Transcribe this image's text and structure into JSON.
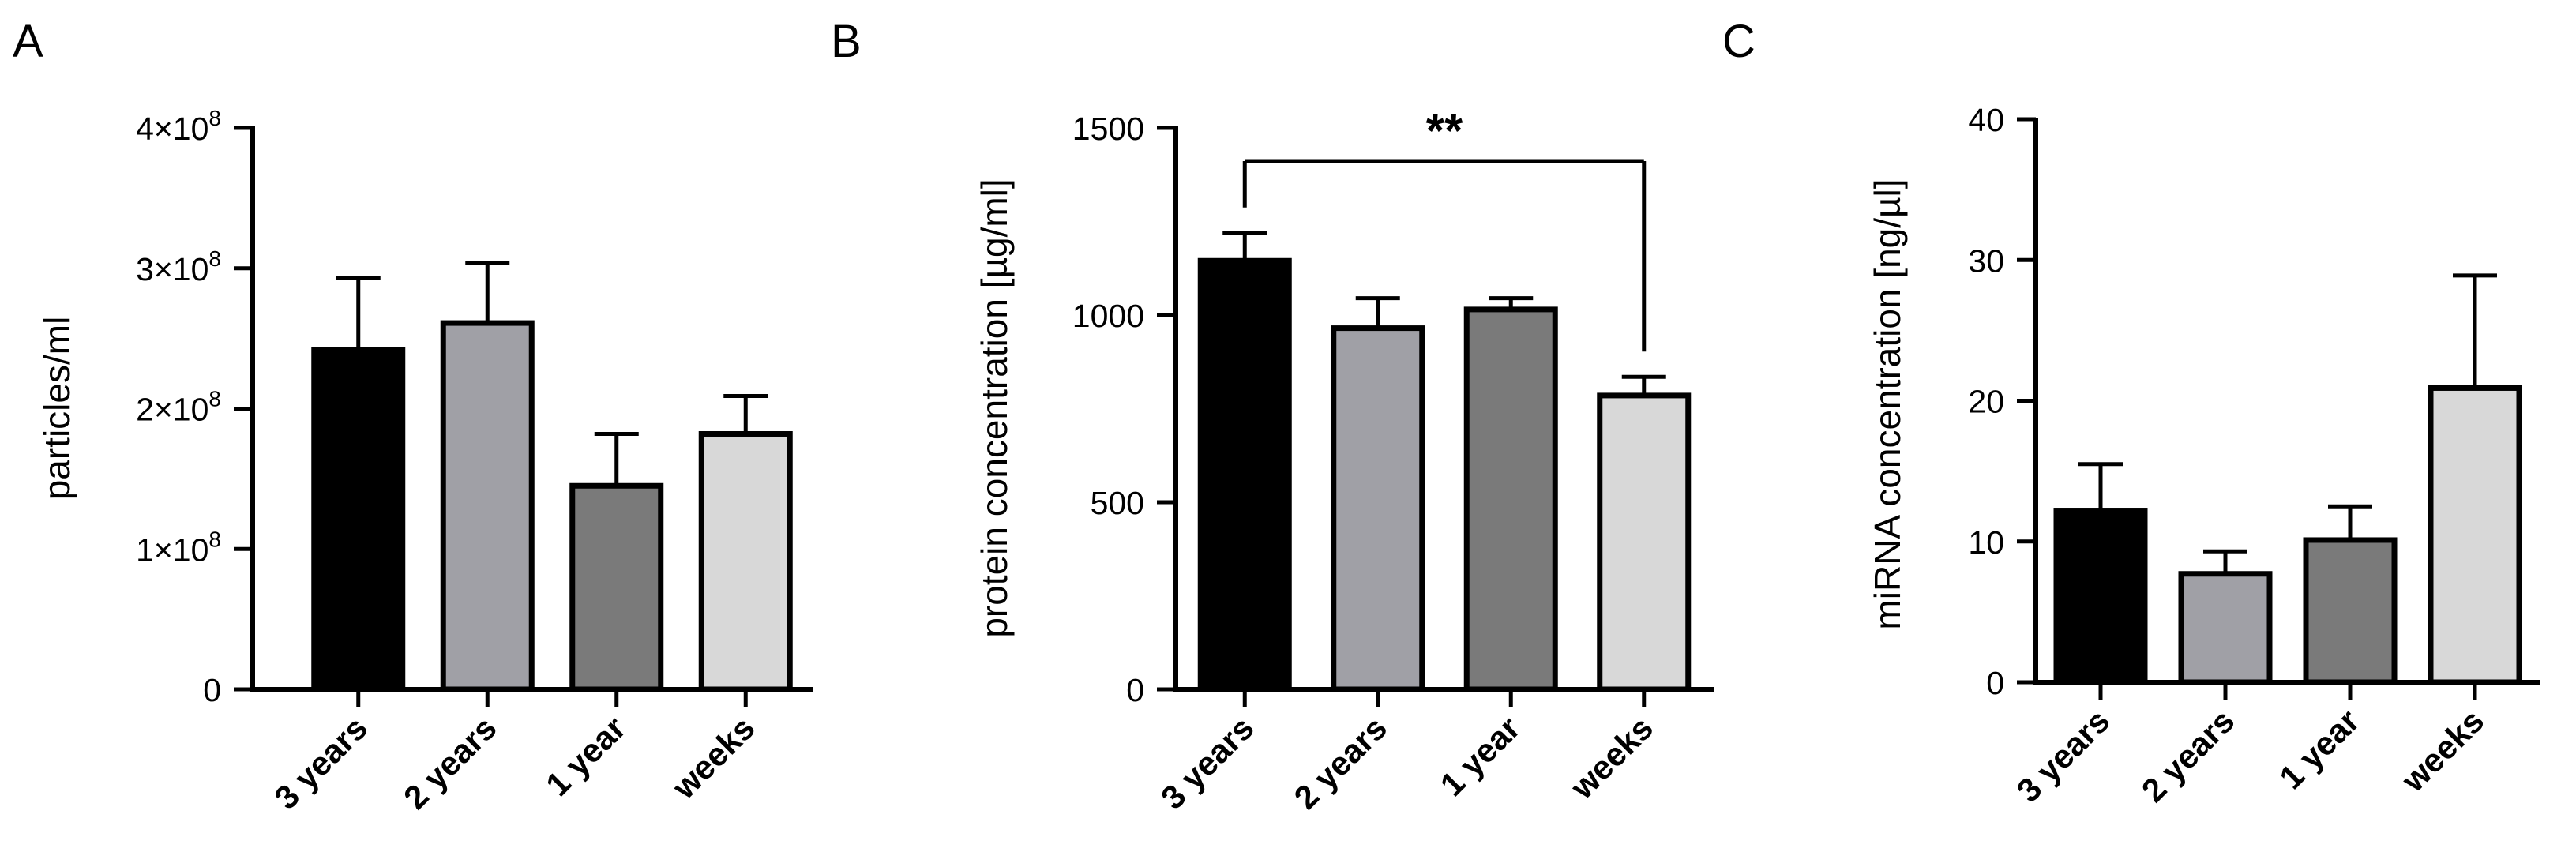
{
  "chart_data": [
    {
      "type": "bar",
      "panel_label": "A",
      "ylabel": "particles/ml",
      "categories": [
        "3 years",
        "2 years",
        "1 year",
        "weeks"
      ],
      "values": [
        242000000,
        261000000,
        145000000,
        182000000
      ],
      "errors": [
        51000000,
        43000000,
        37000000,
        27000000
      ],
      "ylim": [
        0,
        400000000
      ],
      "yticks": [
        0,
        100000000,
        200000000,
        300000000,
        400000000
      ],
      "ytick_labels": [
        "0",
        "1×10",
        "2×10",
        "3×10",
        "4×10"
      ],
      "ytick_exponents": [
        "",
        "8",
        "8",
        "8",
        "8"
      ],
      "colors": [
        "#000000",
        "#a0a0a6",
        "#7a7a7a",
        "#d8d8d8"
      ],
      "grid": false
    },
    {
      "type": "bar",
      "panel_label": "B",
      "ylabel": "protein concentration [µg/ml]",
      "categories": [
        "3 years",
        "2 years",
        "1 year",
        "weeks"
      ],
      "values": [
        1145,
        965,
        1015,
        785
      ],
      "errors": [
        75,
        80,
        30,
        50
      ],
      "ylim": [
        0,
        1500
      ],
      "yticks": [
        0,
        500,
        1000,
        1500
      ],
      "ytick_labels": [
        "0",
        "500",
        "1000",
        "1500"
      ],
      "significance": {
        "label": "**",
        "from": "3 years",
        "to": "weeks"
      },
      "colors": [
        "#000000",
        "#a0a0a6",
        "#7a7a7a",
        "#d8d8d8"
      ],
      "grid": false
    },
    {
      "type": "bar",
      "panel_label": "C",
      "ylabel": "miRNA concentration [ng/µl]",
      "categories": [
        "3 years",
        "2 years",
        "1 year",
        "weeks"
      ],
      "values": [
        12.2,
        7.7,
        10.1,
        20.9
      ],
      "errors": [
        3.3,
        1.6,
        2.4,
        8.0
      ],
      "ylim": [
        0,
        40
      ],
      "yticks": [
        0,
        10,
        20,
        30,
        40
      ],
      "ytick_labels": [
        "0",
        "10",
        "20",
        "30",
        "40"
      ],
      "colors": [
        "#000000",
        "#a0a0a6",
        "#7a7a7a",
        "#d8d8d8"
      ],
      "grid": false
    }
  ]
}
